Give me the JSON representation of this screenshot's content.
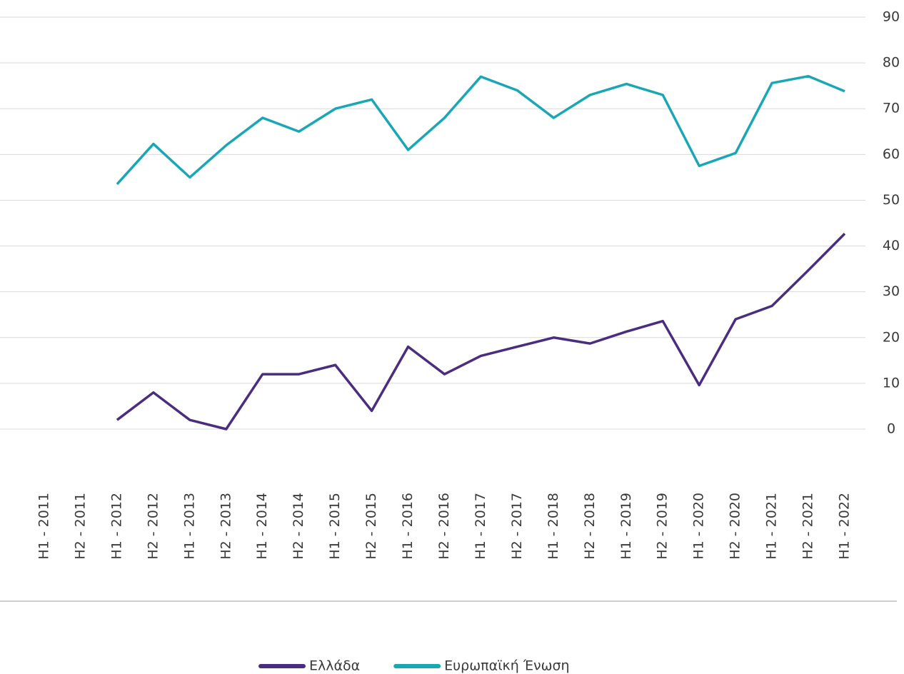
{
  "chart_data": {
    "type": "line",
    "categories": [
      "H1 - 2011",
      "H2 - 2011",
      "H1 - 2012",
      "H2 - 2012",
      "H1 - 2013",
      "H2 - 2013",
      "H1 - 2014",
      "H2 - 2014",
      "H1 - 2015",
      "H2 - 2015",
      "H1 - 2016",
      "H2 - 2016",
      "H1 - 2017",
      "H2 - 2017",
      "H1 - 2018",
      "H2 - 2018",
      "H1 - 2019",
      "H2 - 2019",
      "H1 - 2020",
      "H2 - 2020",
      "H1 - 2021",
      "H2 - 2021",
      "H1 - 2022"
    ],
    "series": [
      {
        "name": "Ελλάδα",
        "color": "#4a2d7f",
        "values": [
          null,
          null,
          2,
          8,
          2,
          0,
          12,
          12,
          14,
          4,
          18,
          12,
          16,
          18,
          20,
          18.7,
          21.3,
          23.6,
          9.6,
          24,
          26.9,
          34.7,
          42.7
        ]
      },
      {
        "name": "Ευρωπαϊκή Ένωση",
        "color": "#1aa7b5",
        "values": [
          null,
          null,
          53.5,
          62.3,
          55,
          62,
          68,
          65,
          70,
          72,
          61,
          68,
          77,
          74,
          68,
          73,
          75.4,
          73,
          57.5,
          60.3,
          75.6,
          77.1,
          73.8
        ]
      }
    ],
    "ylim": [
      0,
      90
    ],
    "yticks": [
      0,
      10,
      20,
      30,
      40,
      50,
      60,
      70,
      80,
      90
    ],
    "grid": true,
    "legend": "bottom"
  }
}
